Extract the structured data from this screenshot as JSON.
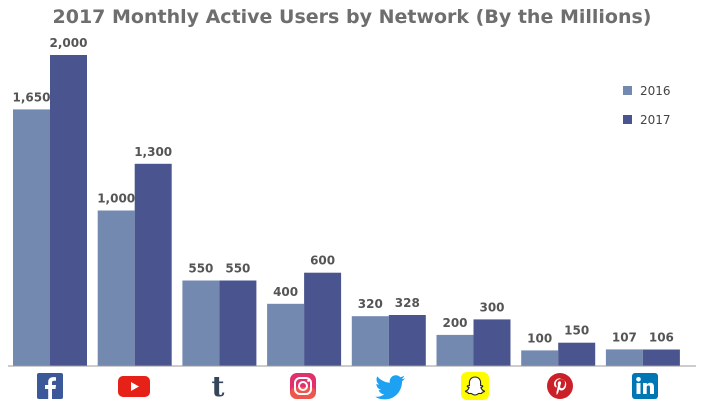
{
  "chart_data": {
    "type": "bar",
    "title": "2017 Monthly Active Users by Network (By the Millions)",
    "categories": [
      "Facebook",
      "YouTube",
      "Tumblr",
      "Instagram",
      "Twitter",
      "Snapchat",
      "Pinterest",
      "LinkedIn"
    ],
    "category_icons": [
      "facebook-icon",
      "youtube-icon",
      "tumblr-icon",
      "instagram-icon",
      "twitter-icon",
      "snapchat-icon",
      "pinterest-icon",
      "linkedin-icon"
    ],
    "series": [
      {
        "name": "2016",
        "color": "#7389b0",
        "values": [
          1650,
          1000,
          550,
          400,
          320,
          200,
          100,
          107
        ],
        "labels": [
          "1,650",
          "1,000",
          "550",
          "400",
          "320",
          "200",
          "100",
          "107"
        ]
      },
      {
        "name": "2017",
        "color": "#4a558f",
        "values": [
          2000,
          1300,
          550,
          600,
          328,
          300,
          150,
          106
        ],
        "labels": [
          "2,000",
          "1,300",
          "550",
          "600",
          "328",
          "300",
          "150",
          "106"
        ]
      }
    ],
    "ylim": [
      0,
      2000
    ],
    "grid": false,
    "legend_position": "top-right",
    "xlabel": "",
    "ylabel": ""
  },
  "colors": {
    "facebook": "#3b5998",
    "youtube": "#e62117",
    "tumblr": "#35465c",
    "instagram": "#e1306c",
    "twitter": "#1da1f2",
    "snapchat": "#fffc00",
    "pinterest": "#cb2027",
    "linkedin": "#0077b5"
  }
}
